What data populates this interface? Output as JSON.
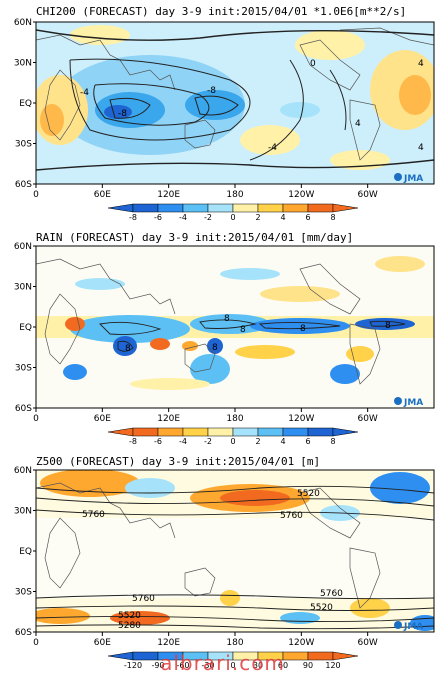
{
  "panels": [
    {
      "title": "CHI200 (FORECAST) day 3-9 init:2015/04/01",
      "units": "*1.0E6[m**2/s]",
      "lat_labels": [
        "60N",
        "30N",
        "EQ",
        "30S",
        "60S"
      ],
      "lon_labels": [
        "0",
        "60E",
        "120E",
        "180",
        "120W",
        "60W"
      ],
      "colorbar_ticks": [
        "-8",
        "-6",
        "-4",
        "-2",
        "0",
        "2",
        "4",
        "6",
        "8"
      ],
      "colorbar_colors": [
        "#1e64d2",
        "#2f8ff0",
        "#5cc0f5",
        "#a6e3fa",
        "#ffffff",
        "#fff2a8",
        "#ffd24a",
        "#ffa830",
        "#f26a1f"
      ],
      "contour_labels": [
        "-4",
        "-8",
        "-8",
        "0",
        "-4",
        "4",
        "4",
        "4"
      ],
      "logo": "JMA"
    },
    {
      "title": "RAIN (FORECAST) day 3-9 init:2015/04/01",
      "units": "[mm/day]",
      "lat_labels": [
        "60N",
        "30N",
        "EQ",
        "30S",
        "60S"
      ],
      "lon_labels": [
        "0",
        "60E",
        "120E",
        "180",
        "120W",
        "60W"
      ],
      "colorbar_ticks": [
        "-8",
        "-6",
        "-4",
        "-2",
        "0",
        "2",
        "4",
        "6",
        "8"
      ],
      "colorbar_colors": [
        "#f26a1f",
        "#ffa830",
        "#ffd24a",
        "#fff2a8",
        "#ffffff",
        "#a6e3fa",
        "#5cc0f5",
        "#2f8ff0",
        "#1e64d2"
      ],
      "contour_labels": [
        "8",
        "8",
        "8",
        "8",
        "8",
        "8"
      ],
      "logo": "JMA"
    },
    {
      "title": "Z500 (FORECAST) day 3-9 init:2015/04/01",
      "units": "[m]",
      "lat_labels": [
        "60N",
        "30N",
        "EQ",
        "30S",
        "60S"
      ],
      "lon_labels": [
        "0",
        "60E",
        "120E",
        "180",
        "120W",
        "60W"
      ],
      "colorbar_ticks": [
        "-120",
        "-90",
        "-60",
        "-30",
        "0",
        "30",
        "60",
        "90",
        "120"
      ],
      "colorbar_colors": [
        "#1e64d2",
        "#2f8ff0",
        "#5cc0f5",
        "#a6e3fa",
        "#ffffff",
        "#fff2a8",
        "#ffd24a",
        "#ffa830",
        "#f26a1f"
      ],
      "contour_labels": [
        "5520",
        "5760",
        "5760",
        "5760",
        "5760",
        "5520",
        "5520",
        "5280"
      ],
      "logo": "JMA"
    }
  ],
  "watermark": "albrari.com"
}
